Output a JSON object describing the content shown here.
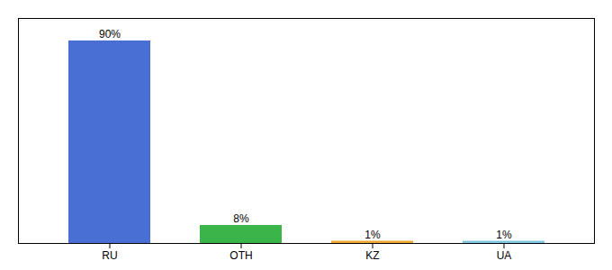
{
  "chart_data": {
    "type": "bar",
    "categories": [
      "RU",
      "OTH",
      "KZ",
      "UA"
    ],
    "values": [
      90,
      8,
      1,
      1
    ],
    "value_labels": [
      "90%",
      "8%",
      "1%",
      "1%"
    ],
    "colors": [
      "#4a6fd4",
      "#3bb54a",
      "#f0a830",
      "#7ec8e3"
    ],
    "ylim": [
      0,
      100
    ],
    "tick_labels": "x",
    "data_labels": true,
    "grid": false
  }
}
